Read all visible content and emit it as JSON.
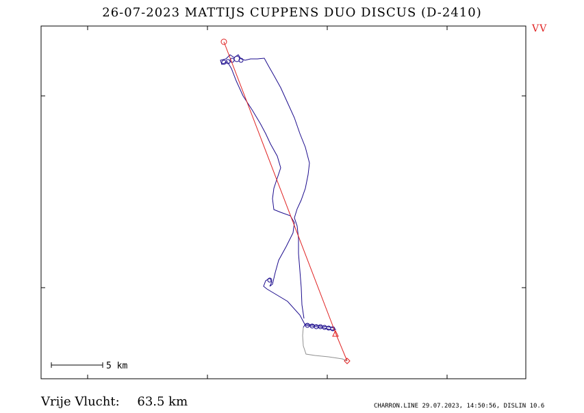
{
  "header": {
    "title": "26-07-2023   MATTIJS CUPPENS   DUO DISCUS (D-2410)",
    "badge": "VV"
  },
  "map": {
    "scale_label": "5 km",
    "track_color": "#1a0a8c",
    "task_color": "#e02020",
    "ground_color": "#909090"
  },
  "footer": {
    "flight_type_label": "Vrije Vlucht:",
    "distance": "63.5 km",
    "credits": "CHARRON.LINE 29.07.2023, 14:50:56, DISLIN 10.6"
  }
}
